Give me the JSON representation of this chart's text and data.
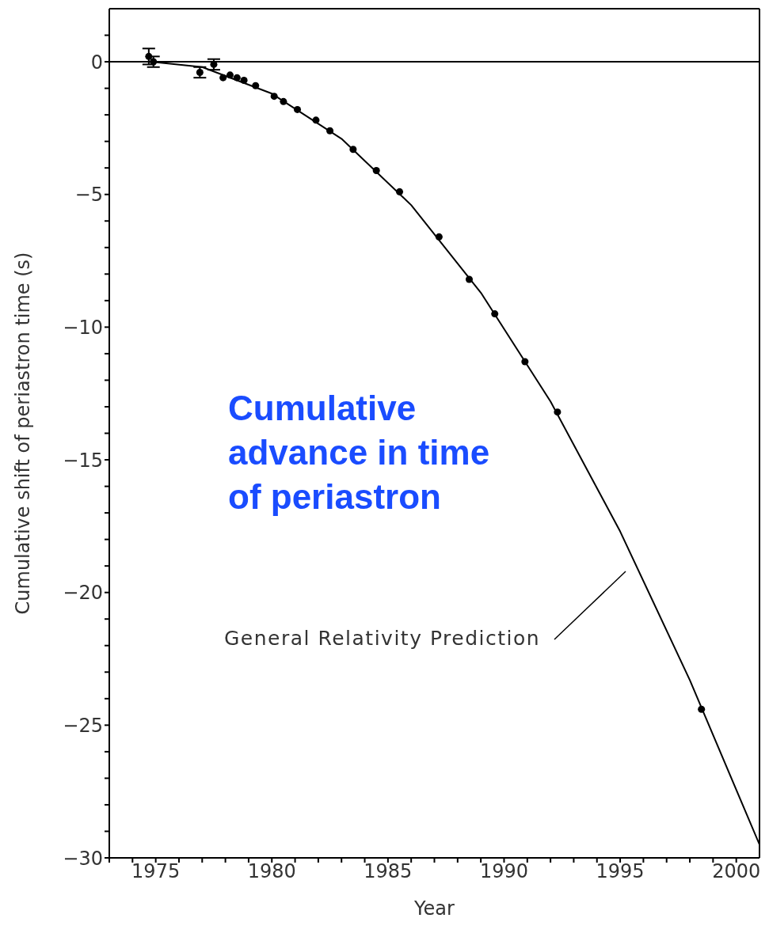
{
  "chart_data": {
    "type": "scatter",
    "xlabel": "Year",
    "ylabel": "Cumulative shift of periastron time (s)",
    "xlim": [
      1973,
      2001
    ],
    "ylim": [
      -30,
      2
    ],
    "xticks": [
      {
        "value": 1973,
        "label": null
      },
      {
        "value": 1974,
        "label": null
      },
      1975,
      {
        "value": 1976,
        "label": null
      },
      {
        "value": 1977,
        "label": null
      },
      {
        "value": 1978,
        "label": null
      },
      {
        "value": 1979,
        "label": null
      },
      1980,
      {
        "value": 1981,
        "label": null
      },
      {
        "value": 1982,
        "label": null
      },
      {
        "value": 1983,
        "label": null
      },
      {
        "value": 1984,
        "label": null
      },
      1985,
      {
        "value": 1986,
        "label": null
      },
      {
        "value": 1987,
        "label": null
      },
      {
        "value": 1988,
        "label": null
      },
      {
        "value": 1989,
        "label": null
      },
      1990,
      {
        "value": 1991,
        "label": null
      },
      {
        "value": 1992,
        "label": null
      },
      {
        "value": 1993,
        "label": null
      },
      {
        "value": 1994,
        "label": null
      },
      1995,
      {
        "value": 1996,
        "label": null
      },
      {
        "value": 1997,
        "label": null
      },
      {
        "value": 1998,
        "label": null
      },
      {
        "value": 1999,
        "label": null
      },
      2000
    ],
    "yticks": [
      -30,
      {
        "value": -29,
        "label": null
      },
      {
        "value": -28,
        "label": null
      },
      {
        "value": -27,
        "label": null
      },
      {
        "value": -26,
        "label": null
      },
      -25,
      {
        "value": -24,
        "label": null
      },
      {
        "value": -23,
        "label": null
      },
      {
        "value": -22,
        "label": null
      },
      {
        "value": -21,
        "label": null
      },
      -20,
      {
        "value": -19,
        "label": null
      },
      {
        "value": -18,
        "label": null
      },
      {
        "value": -17,
        "label": null
      },
      {
        "value": -16,
        "label": null
      },
      -15,
      {
        "value": -14,
        "label": null
      },
      {
        "value": -13,
        "label": null
      },
      {
        "value": -12,
        "label": null
      },
      {
        "value": -11,
        "label": null
      },
      -10,
      {
        "value": -9,
        "label": null
      },
      {
        "value": -8,
        "label": null
      },
      {
        "value": -7,
        "label": null
      },
      {
        "value": -6,
        "label": null
      },
      -5,
      {
        "value": -4,
        "label": null
      },
      {
        "value": -3,
        "label": null
      },
      {
        "value": -2,
        "label": null
      },
      {
        "value": -1,
        "label": null
      },
      0,
      {
        "value": 1,
        "label": null
      }
    ],
    "marker": "circle",
    "series": [
      {
        "color": "#000000",
        "x": [
          1974.7,
          1974.9,
          1976.9,
          1977.5,
          1977.9,
          1978.2,
          1978.5,
          1978.8,
          1979.3,
          1980.1,
          1980.5,
          1981.1,
          1981.9,
          1982.5,
          1983.5,
          1984.5,
          1985.5,
          1987.2,
          1988.5,
          1989.6,
          1990.9,
          1992.3,
          1998.5
        ],
        "values": [
          0.2,
          0,
          -0.4,
          -0.1,
          -0.6,
          -0.5,
          -0.6,
          -0.7,
          -0.9,
          -1.3,
          -1.5,
          -1.8,
          -2.2,
          -2.6,
          -3.3,
          -4.1,
          -4.9,
          -6.6,
          -8.2,
          -9.5,
          -11.3,
          -13.2,
          -24.4
        ],
        "errors": [
          0.3,
          0.2,
          0.2,
          0.2,
          null,
          null,
          null,
          null,
          null,
          null,
          null,
          null,
          null,
          null,
          null,
          null,
          null,
          null,
          null,
          null,
          null,
          null,
          null
        ]
      },
      {
        "type": "line",
        "color": "#000000",
        "marker": "none",
        "x": [
          1974.8,
          1977,
          1980,
          1983,
          1986,
          1989,
          1992,
          1995,
          1998,
          2001
        ],
        "values": [
          0,
          -0.2,
          -1.2,
          -2.9,
          -5.4,
          -8.7,
          -12.8,
          -17.7,
          -23.3,
          -29.5
        ]
      }
    ],
    "ref_lines": [
      {
        "axis": "y",
        "value": 0,
        "color": "#000000"
      }
    ],
    "annotations": [
      "General Relativity Prediction",
      "Cumulative advance in time of periastron"
    ]
  }
}
